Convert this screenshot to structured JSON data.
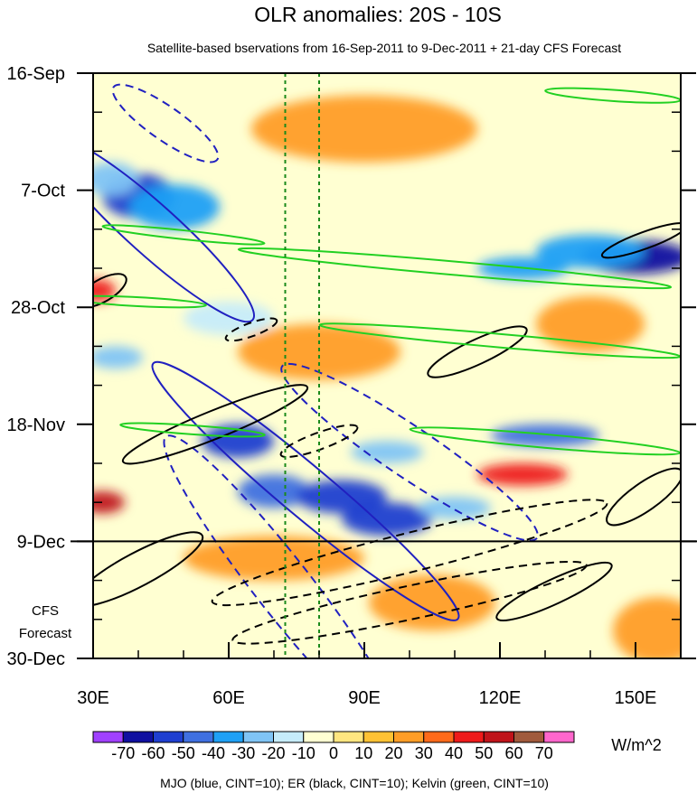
{
  "chart_data": {
    "type": "heatmap",
    "title": "OLR anomalies: 20S - 10S",
    "subtitle": "Satellite-based bservations from 16-Sep-2011 to 9-Dec-2011 + 21-day CFS Forecast",
    "x_axis": {
      "range": [
        30,
        160
      ],
      "ticks": [
        {
          "value": 30,
          "label": "30E"
        },
        {
          "value": 60,
          "label": "60E"
        },
        {
          "value": 90,
          "label": "90E"
        },
        {
          "value": 120,
          "label": "120E"
        },
        {
          "value": 150,
          "label": "150E"
        }
      ],
      "minor_step": 10
    },
    "y_axis": {
      "unit": "days since 16-Sep-2011",
      "range": [
        0,
        105
      ],
      "ticks": [
        {
          "value": 0,
          "label": "16-Sep"
        },
        {
          "value": 21,
          "label": "7-Oct"
        },
        {
          "value": 42,
          "label": "28-Oct"
        },
        {
          "value": 63,
          "label": "18-Nov"
        },
        {
          "value": 84,
          "label": "9-Dec"
        },
        {
          "value": 105,
          "label": "30-Dec"
        }
      ],
      "minor_step": 7,
      "reversed": true
    },
    "forecast_start_day": 84,
    "forecast_label_line1": "CFS",
    "forecast_label_line2": "Forecast",
    "reference_longitudes": [
      72.5,
      80
    ],
    "colorbar": {
      "levels": [
        -70,
        -60,
        -50,
        -40,
        -30,
        -20,
        -10,
        0,
        10,
        20,
        30,
        40,
        50,
        60,
        70
      ],
      "labels": [
        "-70",
        "-60",
        "-50",
        "-40",
        "-30",
        "-20",
        "-10",
        "0",
        "10",
        "20",
        "30",
        "40",
        "50",
        "60",
        "70"
      ],
      "colors": [
        "#a040ff",
        "#1010a0",
        "#1f3fd0",
        "#3f70e0",
        "#1fa0f5",
        "#7fc4f5",
        "#c6ecfa",
        "#ffffd2",
        "#ffe680",
        "#ffc234",
        "#ff9d26",
        "#ff6a1a",
        "#ee1a1a",
        "#c0141a",
        "#a05a3c",
        "#ff66cc"
      ],
      "unit": "W/m^2"
    },
    "legend_text": "MJO (blue, CINT=10); ER (black, CINT=10); Kelvin (green, CINT=10)",
    "anomaly_blobs": [
      {
        "lon": 40,
        "day": 22,
        "value": -55,
        "rlon": 8,
        "rday": 4
      },
      {
        "lon": 48,
        "day": 24,
        "value": -40,
        "rlon": 10,
        "rday": 4
      },
      {
        "lon": 34,
        "day": 19,
        "value": -30,
        "rlon": 6,
        "rday": 3
      },
      {
        "lon": 150,
        "day": 33,
        "value": -65,
        "rlon": 12,
        "rday": 3
      },
      {
        "lon": 140,
        "day": 32,
        "value": -40,
        "rlon": 12,
        "rday": 3
      },
      {
        "lon": 125,
        "day": 35,
        "value": -40,
        "rlon": 10,
        "rday": 2
      },
      {
        "lon": 62,
        "day": 66,
        "value": -60,
        "rlon": 8,
        "rday": 3
      },
      {
        "lon": 70,
        "day": 75,
        "value": -50,
        "rlon": 8,
        "rday": 3
      },
      {
        "lon": 85,
        "day": 76,
        "value": -55,
        "rlon": 10,
        "rday": 3
      },
      {
        "lon": 95,
        "day": 80,
        "value": -60,
        "rlon": 10,
        "rday": 3
      },
      {
        "lon": 110,
        "day": 78,
        "value": -30,
        "rlon": 8,
        "rday": 2
      },
      {
        "lon": 130,
        "day": 65,
        "value": -45,
        "rlon": 12,
        "rday": 2
      },
      {
        "lon": 35,
        "day": 51,
        "value": -30,
        "rlon": 6,
        "rday": 2
      },
      {
        "lon": 95,
        "day": 68,
        "value": -30,
        "rlon": 8,
        "rday": 2
      },
      {
        "lon": 60,
        "day": 44,
        "value": -20,
        "rlon": 10,
        "rday": 3
      },
      {
        "lon": 32,
        "day": 77,
        "value": 50,
        "rlon": 5,
        "rday": 2
      },
      {
        "lon": 31,
        "day": 39,
        "value": 45,
        "rlon": 4,
        "rday": 2
      },
      {
        "lon": 125,
        "day": 72,
        "value": 40,
        "rlon": 10,
        "rday": 2
      },
      {
        "lon": 80,
        "day": 50,
        "value": 25,
        "rlon": 18,
        "rday": 5
      },
      {
        "lon": 90,
        "day": 10,
        "value": 20,
        "rlon": 25,
        "rday": 6
      },
      {
        "lon": 70,
        "day": 87,
        "value": 25,
        "rlon": 20,
        "rday": 4
      },
      {
        "lon": 140,
        "day": 45,
        "value": 25,
        "rlon": 12,
        "rday": 5
      },
      {
        "lon": 105,
        "day": 95,
        "value": 20,
        "rlon": 14,
        "rday": 5
      },
      {
        "lon": 155,
        "day": 100,
        "value": 20,
        "rlon": 10,
        "rday": 6
      }
    ],
    "contours": [
      {
        "system": "MJO",
        "color": "#2020c0",
        "style": "dashed",
        "lon": 46,
        "day": 9,
        "rlon": 14,
        "rday": 3,
        "angle_deg": 35
      },
      {
        "system": "MJO",
        "color": "#2020c0",
        "style": "solid",
        "lon": 43,
        "day": 28,
        "rlon": 30,
        "rday": 4.5,
        "angle_deg": 42
      },
      {
        "system": "MJO",
        "color": "#2020c0",
        "style": "solid",
        "lon": 77,
        "day": 75,
        "rlon": 44,
        "rday": 4.5,
        "angle_deg": 40
      },
      {
        "system": "MJO",
        "color": "#2020c0",
        "style": "dashed",
        "lon": 100,
        "day": 68,
        "rlon": 34,
        "rday": 4.5,
        "angle_deg": 34
      },
      {
        "system": "MJO",
        "color": "#2020c0",
        "style": "dashed",
        "lon": 72,
        "day": 92,
        "rlon": 42,
        "rday": 5,
        "angle_deg": 52
      },
      {
        "system": "ER",
        "color": "#000000",
        "style": "solid",
        "lon": 32,
        "day": 39,
        "rlon": 6,
        "rday": 2,
        "angle_deg": -30
      },
      {
        "system": "ER",
        "color": "#000000",
        "style": "dashed",
        "lon": 65,
        "day": 46,
        "rlon": 6,
        "rday": 1.2,
        "angle_deg": -20
      },
      {
        "system": "ER",
        "color": "#000000",
        "style": "solid",
        "lon": 115,
        "day": 50,
        "rlon": 12,
        "rday": 2.2,
        "angle_deg": -25
      },
      {
        "system": "ER",
        "color": "#000000",
        "style": "solid",
        "lon": 57,
        "day": 63,
        "rlon": 22,
        "rday": 2.5,
        "angle_deg": -22
      },
      {
        "system": "ER",
        "color": "#000000",
        "style": "dashed",
        "lon": 80,
        "day": 66,
        "rlon": 9,
        "rday": 1.5,
        "angle_deg": -20
      },
      {
        "system": "ER",
        "color": "#000000",
        "style": "dashed",
        "lon": 100,
        "day": 86,
        "rlon": 45,
        "rday": 3.5,
        "angle_deg": -14
      },
      {
        "system": "ER",
        "color": "#000000",
        "style": "dashed",
        "lon": 100,
        "day": 95,
        "rlon": 40,
        "rday": 3,
        "angle_deg": -12
      },
      {
        "system": "ER",
        "color": "#000000",
        "style": "solid",
        "lon": 40,
        "day": 89,
        "rlon": 16,
        "rday": 3,
        "angle_deg": -28
      },
      {
        "system": "ER",
        "color": "#000000",
        "style": "solid",
        "lon": 152,
        "day": 76,
        "rlon": 10,
        "rday": 2.5,
        "angle_deg": -35
      },
      {
        "system": "ER",
        "color": "#000000",
        "style": "solid",
        "lon": 132,
        "day": 93,
        "rlon": 14,
        "rday": 2.2,
        "angle_deg": -25
      },
      {
        "system": "ER",
        "color": "#000000",
        "style": "solid",
        "lon": 152,
        "day": 30,
        "rlon": 10,
        "rday": 1.5,
        "angle_deg": -20
      },
      {
        "system": "Kelvin",
        "color": "#22d022",
        "style": "solid",
        "lon": 110,
        "day": 35,
        "rlon": 48,
        "rday": 1.2,
        "angle_deg": 5
      },
      {
        "system": "Kelvin",
        "color": "#22d022",
        "style": "solid",
        "lon": 120,
        "day": 48,
        "rlon": 40,
        "rday": 1.2,
        "angle_deg": 5
      },
      {
        "system": "Kelvin",
        "color": "#22d022",
        "style": "solid",
        "lon": 130,
        "day": 66,
        "rlon": 30,
        "rday": 1.2,
        "angle_deg": 5
      },
      {
        "system": "Kelvin",
        "color": "#22d022",
        "style": "solid",
        "lon": 145,
        "day": 4,
        "rlon": 15,
        "rday": 1,
        "angle_deg": 4
      },
      {
        "system": "Kelvin",
        "color": "#22d022",
        "style": "solid",
        "lon": 50,
        "day": 29,
        "rlon": 18,
        "rday": 0.8,
        "angle_deg": 6
      },
      {
        "system": "Kelvin",
        "color": "#22d022",
        "style": "solid",
        "lon": 52,
        "day": 64,
        "rlon": 16,
        "rday": 0.8,
        "angle_deg": 4
      },
      {
        "system": "Kelvin",
        "color": "#22d022",
        "style": "solid",
        "lon": 40,
        "day": 41,
        "rlon": 15,
        "rday": 0.8,
        "angle_deg": 3
      }
    ]
  }
}
